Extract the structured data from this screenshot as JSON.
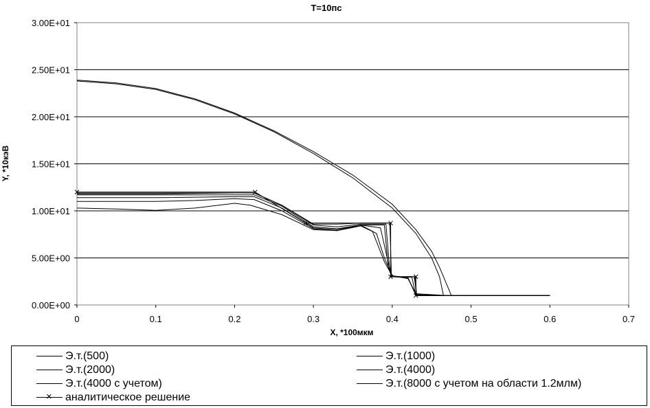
{
  "chart_data": {
    "type": "line",
    "title": "T=10пс",
    "xlabel": "X, *100мкм",
    "ylabel": "Y, *10кэВ",
    "xlim": [
      0,
      0.7
    ],
    "ylim": [
      0,
      30
    ],
    "x_ticks": [
      "0",
      "0.1",
      "0.2",
      "0.3",
      "0.4",
      "0.5",
      "0.6",
      "0.7"
    ],
    "y_ticks": [
      "0.00E+00",
      "5.00E+00",
      "1.00E+01",
      "1.50E+01",
      "2.00E+01",
      "2.50E+01",
      "3.00E+01"
    ],
    "grid": "horizontal",
    "legend_position": "bottom",
    "series": [
      {
        "name": "Э.т.(500)",
        "points": [
          [
            0,
            10.3
          ],
          [
            0.05,
            10.2
          ],
          [
            0.1,
            10.05
          ],
          [
            0.15,
            10.3
          ],
          [
            0.2,
            10.8
          ],
          [
            0.22,
            10.6
          ],
          [
            0.26,
            9.6
          ],
          [
            0.3,
            8.0
          ],
          [
            0.33,
            7.9
          ],
          [
            0.36,
            8.4
          ],
          [
            0.375,
            7.8
          ],
          [
            0.39,
            4.6
          ],
          [
            0.4,
            3.1
          ],
          [
            0.42,
            2.8
          ],
          [
            0.43,
            1.2
          ],
          [
            0.47,
            1.0
          ],
          [
            0.6,
            1.0
          ]
        ]
      },
      {
        "name": "Э.т.(1000)",
        "points": [
          [
            0,
            11.0
          ],
          [
            0.05,
            11.0
          ],
          [
            0.1,
            11.0
          ],
          [
            0.15,
            11.1
          ],
          [
            0.2,
            11.3
          ],
          [
            0.225,
            11.2
          ],
          [
            0.26,
            10.0
          ],
          [
            0.3,
            8.1
          ],
          [
            0.33,
            7.9
          ],
          [
            0.36,
            8.5
          ],
          [
            0.38,
            7.6
          ],
          [
            0.39,
            5.0
          ],
          [
            0.4,
            3.1
          ],
          [
            0.42,
            2.9
          ],
          [
            0.43,
            1.1
          ],
          [
            0.47,
            1.0
          ],
          [
            0.6,
            1.0
          ]
        ]
      },
      {
        "name": "Э.т.(2000)",
        "points": [
          [
            0,
            11.4
          ],
          [
            0.1,
            11.4
          ],
          [
            0.2,
            11.5
          ],
          [
            0.225,
            11.5
          ],
          [
            0.26,
            10.3
          ],
          [
            0.3,
            8.2
          ],
          [
            0.33,
            8.0
          ],
          [
            0.36,
            8.5
          ],
          [
            0.385,
            8.2
          ],
          [
            0.395,
            4.5
          ],
          [
            0.4,
            3.0
          ],
          [
            0.42,
            2.9
          ],
          [
            0.43,
            1.0
          ],
          [
            0.6,
            1.0
          ]
        ]
      },
      {
        "name": "Э.т.(4000)",
        "points": [
          [
            0,
            11.7
          ],
          [
            0.1,
            11.7
          ],
          [
            0.2,
            11.7
          ],
          [
            0.225,
            11.7
          ],
          [
            0.26,
            10.5
          ],
          [
            0.3,
            8.3
          ],
          [
            0.33,
            8.1
          ],
          [
            0.36,
            8.5
          ],
          [
            0.39,
            8.5
          ],
          [
            0.395,
            4.0
          ],
          [
            0.4,
            3.0
          ],
          [
            0.425,
            2.95
          ],
          [
            0.43,
            1.0
          ],
          [
            0.6,
            1.0
          ]
        ]
      },
      {
        "name": "Э.т.(4000 с учетом)",
        "points": [
          [
            0,
            11.8
          ],
          [
            0.1,
            11.8
          ],
          [
            0.2,
            11.9
          ],
          [
            0.225,
            11.9
          ],
          [
            0.26,
            10.6
          ],
          [
            0.3,
            8.5
          ],
          [
            0.33,
            8.3
          ],
          [
            0.36,
            8.6
          ],
          [
            0.392,
            8.6
          ],
          [
            0.397,
            3.5
          ],
          [
            0.4,
            3.0
          ],
          [
            0.428,
            3.0
          ],
          [
            0.431,
            1.0
          ],
          [
            0.6,
            1.0
          ]
        ]
      },
      {
        "name": "Э.т.(8000 с учетом на области 1.2млм)",
        "points": [
          [
            0,
            11.9
          ],
          [
            0.1,
            11.9
          ],
          [
            0.2,
            11.9
          ],
          [
            0.225,
            11.9
          ],
          [
            0.26,
            10.6
          ],
          [
            0.3,
            8.6
          ],
          [
            0.33,
            8.6
          ],
          [
            0.36,
            8.7
          ],
          [
            0.397,
            8.7
          ],
          [
            0.399,
            3.0
          ],
          [
            0.429,
            3.0
          ],
          [
            0.431,
            1.0
          ],
          [
            0.6,
            1.0
          ]
        ]
      },
      {
        "name": "аналитическое решение",
        "marker": "x",
        "points": [
          [
            0,
            12.0
          ],
          [
            0.226,
            12.0
          ],
          [
            0.29,
            8.7
          ],
          [
            0.398,
            8.7
          ],
          [
            0.398,
            3.0
          ],
          [
            0.43,
            3.0
          ],
          [
            0.43,
            1.0
          ]
        ]
      }
    ],
    "upper_curves": [
      {
        "points": [
          [
            0,
            23.9
          ],
          [
            0.05,
            23.6
          ],
          [
            0.1,
            23.0
          ],
          [
            0.15,
            21.9
          ],
          [
            0.2,
            20.4
          ],
          [
            0.25,
            18.5
          ],
          [
            0.3,
            16.3
          ],
          [
            0.35,
            13.8
          ],
          [
            0.4,
            10.7
          ],
          [
            0.43,
            8.0
          ],
          [
            0.45,
            5.7
          ],
          [
            0.46,
            4.0
          ],
          [
            0.47,
            2.0
          ],
          [
            0.475,
            1.0
          ],
          [
            0.6,
            1.0
          ]
        ]
      },
      {
        "points": [
          [
            0,
            23.8
          ],
          [
            0.05,
            23.5
          ],
          [
            0.1,
            22.9
          ],
          [
            0.15,
            21.8
          ],
          [
            0.2,
            20.3
          ],
          [
            0.25,
            18.4
          ],
          [
            0.3,
            16.1
          ],
          [
            0.35,
            13.5
          ],
          [
            0.4,
            10.3
          ],
          [
            0.43,
            7.6
          ],
          [
            0.45,
            5.0
          ],
          [
            0.46,
            3.0
          ],
          [
            0.465,
            1.0
          ],
          [
            0.6,
            1.0
          ]
        ]
      }
    ]
  }
}
